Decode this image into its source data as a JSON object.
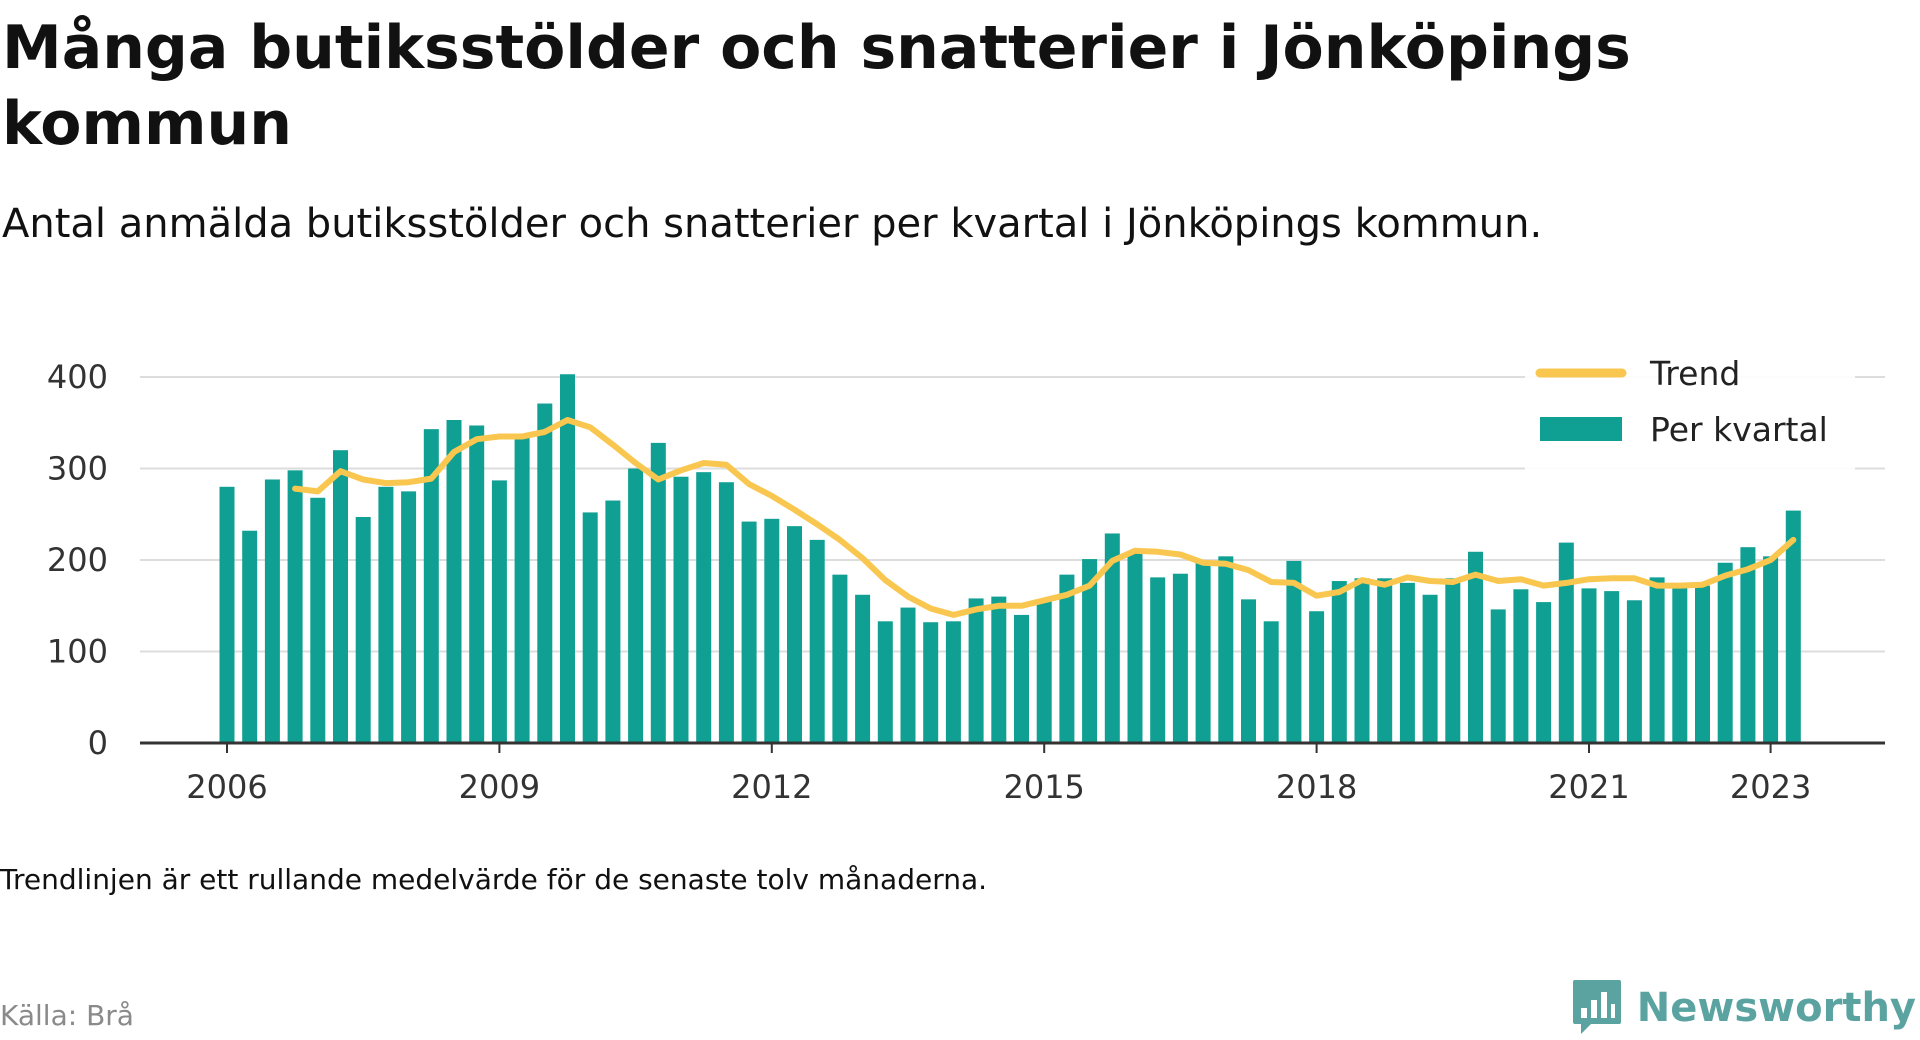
{
  "title": "Många butiksstölder och snatterier i Jönköpings kommun",
  "subtitle": "Antal anmälda butiksstölder och snatterier per kvartal i Jönköpings kommun.",
  "note": "Trendlinjen är ett rullande medelvärde för de senaste tolv månaderna.",
  "source": "Källa: Brå",
  "brand": {
    "name": "Newsworthy",
    "icon": "bar-chart-icon",
    "color": "#5aa3a0"
  },
  "colors": {
    "bars": "#0fa093",
    "trend": "#f9c74f",
    "grid": "#dddddd",
    "axis": "#333333"
  },
  "chart_data": {
    "type": "bar",
    "x_start": "2006 Q1",
    "interval": "quarter",
    "ylim": [
      0,
      400
    ],
    "yticks": [
      0,
      100,
      200,
      300,
      400
    ],
    "xticks": [
      "2006",
      "2009",
      "2012",
      "2015",
      "2018",
      "2021",
      "2023"
    ],
    "grid": true,
    "legend_position": "top-right",
    "series": [
      {
        "name": "Per kvartal",
        "type": "bar",
        "values": [
          280,
          232,
          288,
          298,
          268,
          320,
          247,
          280,
          275,
          343,
          353,
          347,
          287,
          338,
          371,
          403,
          252,
          265,
          300,
          328,
          291,
          296,
          285,
          242,
          245,
          237,
          222,
          184,
          162,
          133,
          148,
          132,
          133,
          158,
          160,
          140,
          155,
          184,
          201,
          229,
          210,
          181,
          185,
          198,
          204,
          157,
          133,
          199,
          144,
          177,
          180,
          180,
          175,
          162,
          180,
          209,
          146,
          168,
          154,
          219,
          169,
          166,
          156,
          181,
          173,
          172,
          197,
          214,
          204,
          254
        ]
      },
      {
        "name": "Trend",
        "type": "line",
        "values": [
          null,
          null,
          null,
          278,
          275,
          297,
          288,
          284,
          285,
          289,
          318,
          332,
          335,
          335,
          340,
          353,
          345,
          326,
          306,
          288,
          298,
          306,
          304,
          283,
          270,
          255,
          239,
          222,
          202,
          178,
          160,
          147,
          140,
          146,
          150,
          150,
          156,
          162,
          172,
          199,
          210,
          209,
          206,
          197,
          196,
          189,
          176,
          175,
          161,
          165,
          178,
          173,
          181,
          177,
          176,
          184,
          177,
          179,
          172,
          175,
          179,
          180,
          180,
          172,
          172,
          173,
          183,
          190,
          200,
          222
        ]
      }
    ]
  }
}
